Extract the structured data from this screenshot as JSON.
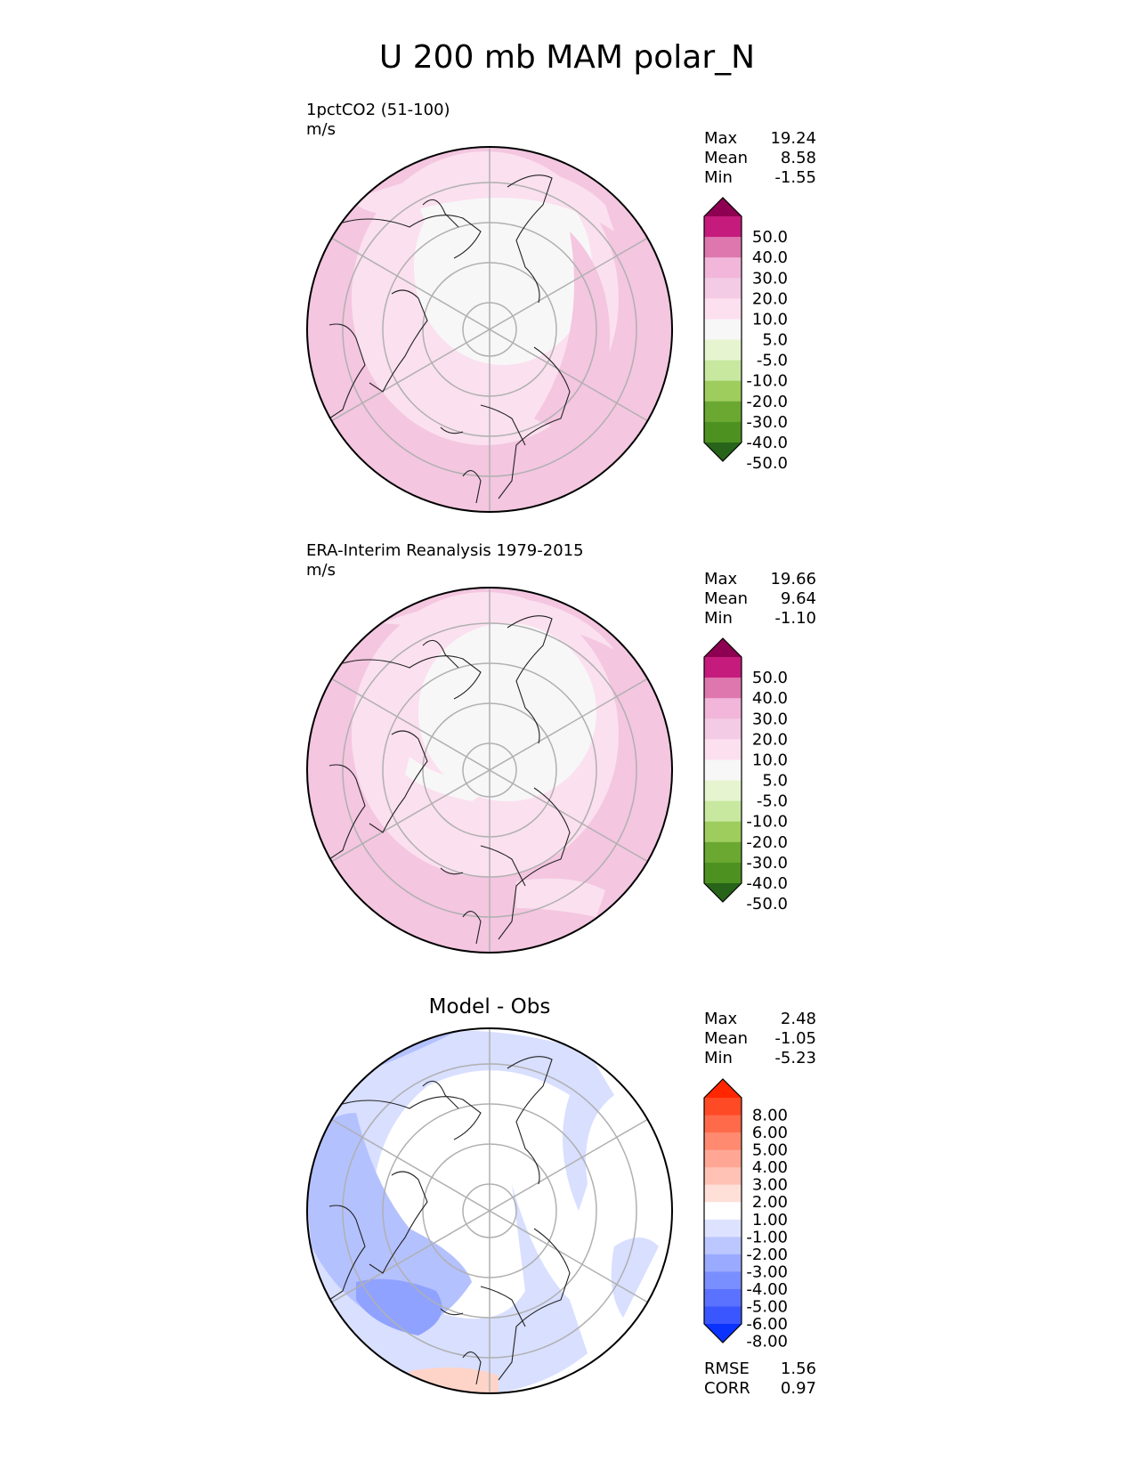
{
  "title": "U 200 mb MAM polar_N",
  "panels": [
    {
      "title": "1pctCO2 (51-100)",
      "units": "m/s",
      "stats": [
        {
          "label": "Max",
          "value": "19.24"
        },
        {
          "label": "Mean",
          "value": "8.58"
        },
        {
          "label": "Min",
          "value": "-1.55"
        }
      ],
      "colorbar": {
        "ticks": [
          "50.0",
          "40.0",
          "30.0",
          "20.0",
          "10.0",
          "5.0",
          "-5.0",
          "-10.0",
          "-20.0",
          "-30.0",
          "-40.0",
          "-50.0"
        ],
        "colors": [
          "#8e0152",
          "#c51b7d",
          "#de77ae",
          "#f1b6da",
          "#f4cbe4",
          "#fde0ef",
          "#f7f7f7",
          "#e6f5d0",
          "#c8e8a0",
          "#9ecd5e",
          "#6aa832",
          "#4d9221",
          "#276419"
        ]
      }
    },
    {
      "title": "ERA-Interim Reanalysis 1979-2015",
      "units": "m/s",
      "stats": [
        {
          "label": "Max",
          "value": "19.66"
        },
        {
          "label": "Mean",
          "value": "9.64"
        },
        {
          "label": "Min",
          "value": "-1.10"
        }
      ],
      "colorbar": {
        "ticks": [
          "50.0",
          "40.0",
          "30.0",
          "20.0",
          "10.0",
          "5.0",
          "-5.0",
          "-10.0",
          "-20.0",
          "-30.0",
          "-40.0",
          "-50.0"
        ],
        "colors": [
          "#8e0152",
          "#c51b7d",
          "#de77ae",
          "#f1b6da",
          "#f4cbe4",
          "#fde0ef",
          "#f7f7f7",
          "#e6f5d0",
          "#c8e8a0",
          "#9ecd5e",
          "#6aa832",
          "#4d9221",
          "#276419"
        ]
      }
    },
    {
      "title": "Model - Obs",
      "units": "",
      "stats": [
        {
          "label": "Max",
          "value": "2.48"
        },
        {
          "label": "Mean",
          "value": "-1.05"
        },
        {
          "label": "Min",
          "value": "-5.23"
        }
      ],
      "extra_stats": [
        {
          "label": "RMSE",
          "value": "1.56"
        },
        {
          "label": "CORR",
          "value": "0.97"
        }
      ],
      "colorbar": {
        "ticks": [
          "8.00",
          "6.00",
          "5.00",
          "4.00",
          "3.00",
          "2.00",
          "1.00",
          "-1.00",
          "-2.00",
          "-3.00",
          "-4.00",
          "-5.00",
          "-6.00",
          "-8.00"
        ],
        "colors": [
          "#ff2600",
          "#ff4a26",
          "#ff6a4a",
          "#ff8a70",
          "#ffa794",
          "#ffc2b5",
          "#ffe0d8",
          "#ffffff",
          "#dde3ff",
          "#bcc7ff",
          "#9aaaff",
          "#7a8fff",
          "#5a72ff",
          "#3a56ff",
          "#0a33ff"
        ]
      }
    }
  ],
  "chart_data": {
    "type": "heatmap",
    "projection": "north polar stereographic",
    "variable": "U 200 mb MAM polar_N",
    "maps": [
      {
        "name": "1pctCO2 (51-100)",
        "units": "m/s",
        "max": 19.24,
        "mean": 8.58,
        "min": -1.55,
        "levels": [
          -50,
          -40,
          -30,
          -20,
          -10,
          -5,
          5,
          10,
          20,
          30,
          40,
          50
        ]
      },
      {
        "name": "ERA-Interim Reanalysis 1979-2015",
        "units": "m/s",
        "max": 19.66,
        "mean": 9.64,
        "min": -1.1,
        "levels": [
          -50,
          -40,
          -30,
          -20,
          -10,
          -5,
          5,
          10,
          20,
          30,
          40,
          50
        ]
      },
      {
        "name": "Model - Obs",
        "max": 2.48,
        "mean": -1.05,
        "min": -5.23,
        "rmse": 1.56,
        "corr": 0.97,
        "levels": [
          -8,
          -6,
          -5,
          -4,
          -3,
          -2,
          -1,
          1,
          2,
          3,
          4,
          5,
          6,
          8
        ]
      }
    ]
  }
}
